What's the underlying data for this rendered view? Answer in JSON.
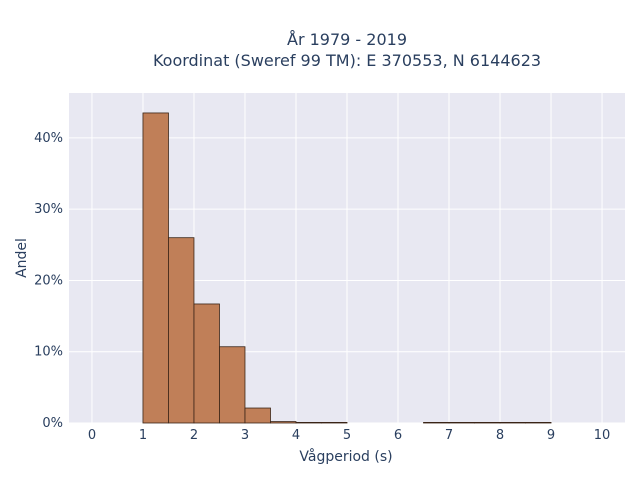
{
  "chart_data": {
    "type": "bar",
    "title_line1": "År 1979 - 2019",
    "title_line2": "Koordinat (Sweref 99 TM): E 370553, N 6144623",
    "xlabel": "Vågperiod (s)",
    "ylabel": "Andel",
    "xlim": [
      -0.45,
      10.45
    ],
    "ylim": [
      0,
      46.3
    ],
    "x_ticks": [
      0,
      1,
      2,
      3,
      4,
      5,
      6,
      7,
      8,
      9,
      10
    ],
    "y_ticks": [
      0,
      10,
      20,
      30,
      40
    ],
    "y_tick_labels": [
      "0%",
      "10%",
      "20%",
      "30%",
      "40%"
    ],
    "bin_width": 0.5,
    "bars": [
      {
        "x0": 1.0,
        "value": 43.5
      },
      {
        "x0": 1.5,
        "value": 26.0
      },
      {
        "x0": 2.0,
        "value": 16.7
      },
      {
        "x0": 2.5,
        "value": 10.7
      },
      {
        "x0": 3.0,
        "value": 2.1
      },
      {
        "x0": 3.5,
        "value": 0.2
      },
      {
        "x0": 4.0,
        "value": 0.05
      },
      {
        "x0": 4.5,
        "value": 0.03
      },
      {
        "x0": 6.5,
        "value": 0.04
      },
      {
        "x0": 7.0,
        "value": 0.04
      },
      {
        "x0": 7.5,
        "value": 0.03
      },
      {
        "x0": 8.0,
        "value": 0.03
      },
      {
        "x0": 8.5,
        "value": 0.03
      }
    ],
    "grid": true,
    "colors": {
      "bar": "#c07f58",
      "bar_edge": "#3a2416",
      "plot_bg": "#e8e8f2",
      "grid": "#ffffff"
    }
  }
}
